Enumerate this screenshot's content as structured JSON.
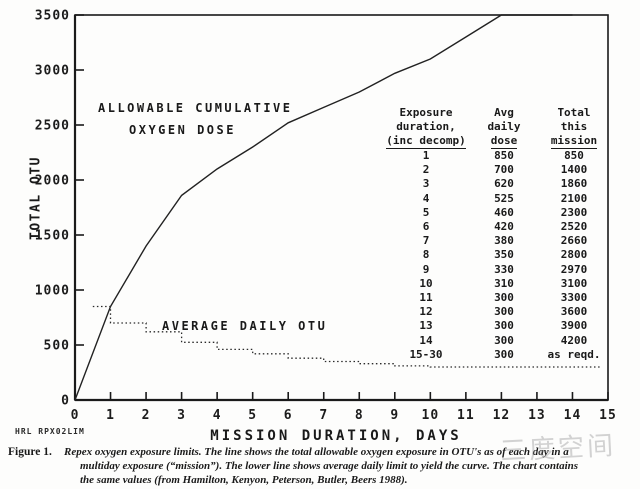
{
  "figure": {
    "caption_label": "Figure 1.",
    "caption_lines": [
      "Repex oxygen exposure limits. The line shows the total allowable oxygen exposure in OTU's as of each day in a",
      "multiday exposure (“mission”). The lower line shows average daily limit to yield the curve. The chart contains",
      "the same values (from Hamilton, Kenyon, Peterson, Butler, Beers 1988)."
    ],
    "plot_id": "HRL RPX02LIM",
    "watermark_text": "三度空间"
  },
  "chart_data": {
    "type": "line",
    "title": "",
    "xlabel": "MISSION DURATION, DAYS",
    "ylabel": "TOTAL OTU",
    "xlim": [
      0,
      15
    ],
    "ylim": [
      0,
      3500
    ],
    "x_ticks": [
      0,
      1,
      2,
      3,
      4,
      5,
      6,
      7,
      8,
      9,
      10,
      11,
      12,
      13,
      14,
      15
    ],
    "y_ticks": [
      0,
      500,
      1000,
      1500,
      2000,
      2500,
      3000,
      3500
    ],
    "grid": false,
    "legend_position": "none",
    "annotations": {
      "allowable_line1": "ALLOWABLE CUMULATIVE",
      "allowable_line2": "OXYGEN DOSE",
      "average_daily": "AVERAGE DAILY OTU"
    },
    "series": [
      {
        "name": "Allowable cumulative oxygen dose",
        "style": "solid",
        "x": [
          0,
          1,
          2,
          3,
          4,
          5,
          6,
          7,
          8,
          9,
          10,
          11,
          12,
          13,
          14
        ],
        "y": [
          0,
          850,
          1400,
          1860,
          2100,
          2300,
          2520,
          2660,
          2800,
          2970,
          3100,
          3300,
          3600,
          3900,
          4200
        ],
        "clip_at": 3500
      },
      {
        "name": "Average daily OTU",
        "style": "dotted-staircase",
        "durations": [
          1,
          2,
          3,
          4,
          5,
          6,
          7,
          8,
          9,
          10,
          11,
          12,
          13,
          14
        ],
        "values": [
          850,
          700,
          620,
          525,
          460,
          420,
          380,
          350,
          330,
          310,
          300,
          300,
          300,
          300
        ],
        "start_day": 0.5,
        "extend_to_day": 14.8
      }
    ],
    "table": {
      "headers": [
        [
          "Exposure",
          "duration,",
          "(inc decomp)"
        ],
        [
          "Avg",
          "daily",
          "dose"
        ],
        [
          "Total",
          "this",
          "mission"
        ]
      ],
      "rows": [
        [
          "1",
          "850",
          "850"
        ],
        [
          "2",
          "700",
          "1400"
        ],
        [
          "3",
          "620",
          "1860"
        ],
        [
          "4",
          "525",
          "2100"
        ],
        [
          "5",
          "460",
          "2300"
        ],
        [
          "6",
          "420",
          "2520"
        ],
        [
          "7",
          "380",
          "2660"
        ],
        [
          "8",
          "350",
          "2800"
        ],
        [
          "9",
          "330",
          "2970"
        ],
        [
          "10",
          "310",
          "3100"
        ],
        [
          "11",
          "300",
          "3300"
        ],
        [
          "12",
          "300",
          "3600"
        ],
        [
          "13",
          "300",
          "3900"
        ],
        [
          "14",
          "300",
          "4200"
        ],
        [
          "15-30",
          "300",
          "as reqd."
        ]
      ]
    }
  }
}
